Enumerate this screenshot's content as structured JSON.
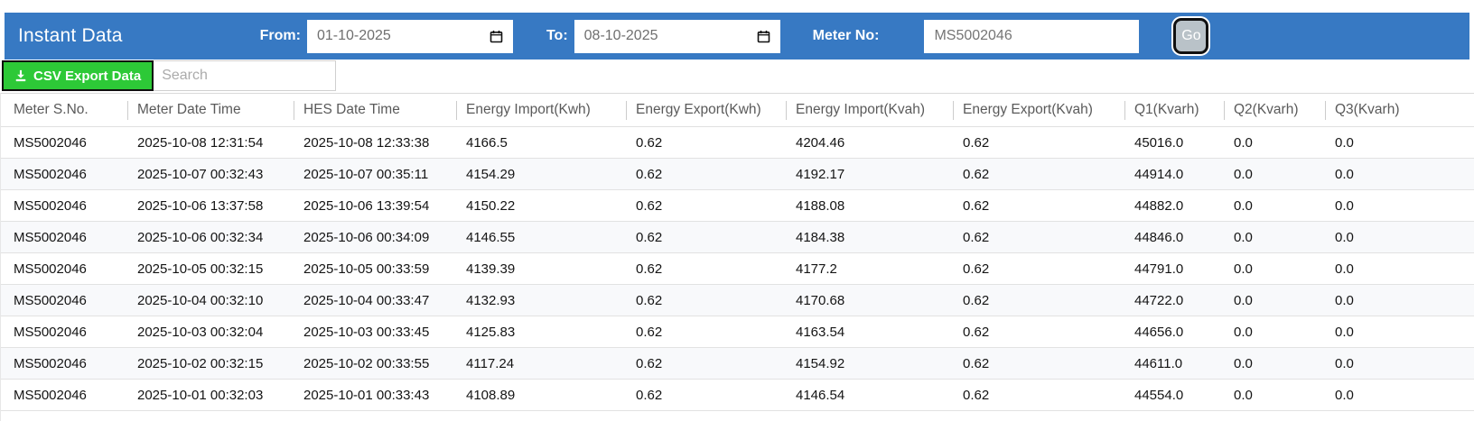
{
  "header": {
    "title": "Instant Data",
    "from_label": "From:",
    "from_value": "01-10-2025",
    "to_label": "To:",
    "to_value": "08-10-2025",
    "meter_label": "Meter No:",
    "meter_value": "MS5002046",
    "go_label": "Go"
  },
  "toolbar": {
    "csv_button_label": "CSV Export Data",
    "search_placeholder": "Search"
  },
  "table": {
    "columns": [
      "Meter S.No.",
      "Meter Date Time",
      "HES Date Time",
      "Energy Import(Kwh)",
      "Energy Export(Kwh)",
      "Energy Import(Kvah)",
      "Energy Export(Kvah)",
      "Q1(Kvarh)",
      "Q2(Kvarh)",
      "Q3(Kvarh)"
    ],
    "rows": [
      [
        "MS5002046",
        "2025-10-08 12:31:54",
        "2025-10-08 12:33:38",
        "4166.5",
        "0.62",
        "4204.46",
        "0.62",
        "45016.0",
        "0.0",
        "0.0"
      ],
      [
        "MS5002046",
        "2025-10-07 00:32:43",
        "2025-10-07 00:35:11",
        "4154.29",
        "0.62",
        "4192.17",
        "0.62",
        "44914.0",
        "0.0",
        "0.0"
      ],
      [
        "MS5002046",
        "2025-10-06 13:37:58",
        "2025-10-06 13:39:54",
        "4150.22",
        "0.62",
        "4188.08",
        "0.62",
        "44882.0",
        "0.0",
        "0.0"
      ],
      [
        "MS5002046",
        "2025-10-06 00:32:34",
        "2025-10-06 00:34:09",
        "4146.55",
        "0.62",
        "4184.38",
        "0.62",
        "44846.0",
        "0.0",
        "0.0"
      ],
      [
        "MS5002046",
        "2025-10-05 00:32:15",
        "2025-10-05 00:33:59",
        "4139.39",
        "0.62",
        "4177.2",
        "0.62",
        "44791.0",
        "0.0",
        "0.0"
      ],
      [
        "MS5002046",
        "2025-10-04 00:32:10",
        "2025-10-04 00:33:47",
        "4132.93",
        "0.62",
        "4170.68",
        "0.62",
        "44722.0",
        "0.0",
        "0.0"
      ],
      [
        "MS5002046",
        "2025-10-03 00:32:04",
        "2025-10-03 00:33:45",
        "4125.83",
        "0.62",
        "4163.54",
        "0.62",
        "44656.0",
        "0.0",
        "0.0"
      ],
      [
        "MS5002046",
        "2025-10-02 00:32:15",
        "2025-10-02 00:33:55",
        "4117.24",
        "0.62",
        "4154.92",
        "0.62",
        "44611.0",
        "0.0",
        "0.0"
      ],
      [
        "MS5002046",
        "2025-10-01 00:32:03",
        "2025-10-01 00:33:43",
        "4108.89",
        "0.62",
        "4146.54",
        "0.62",
        "44554.0",
        "0.0",
        "0.0"
      ]
    ]
  },
  "colors": {
    "header_bar": "#3779c3",
    "csv_button": "#2dc937",
    "go_button_bg": "#b9c2c8"
  }
}
